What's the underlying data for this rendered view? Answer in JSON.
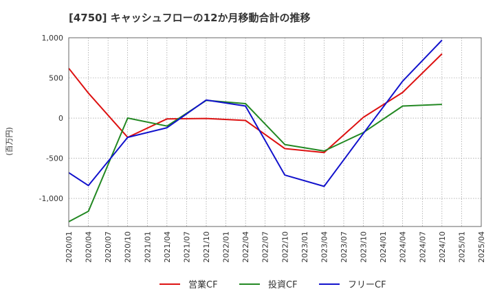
{
  "chart_data": {
    "type": "line",
    "title": "[4750]  キャッシュフローの12か月移動合計の推移",
    "ylabel": "(百万円)",
    "xlabel": "",
    "ylim": [
      -1350,
      1000
    ],
    "yticks": [
      1000,
      500,
      0,
      -500,
      -1000
    ],
    "ytick_labels": [
      "1,000",
      "500",
      "0",
      "-500",
      "-1,000"
    ],
    "x_tick_labels": [
      "2020/01",
      "2020/04",
      "2020/07",
      "2020/10",
      "2021/01",
      "2021/04",
      "2021/07",
      "2021/10",
      "2022/01",
      "2022/04",
      "2022/07",
      "2022/10",
      "2023/01",
      "2023/04",
      "2023/07",
      "2023/10",
      "2024/01",
      "2024/04",
      "2024/07",
      "2024/10",
      "2025/01",
      "2025/04"
    ],
    "grid": true,
    "legend_position": "bottom",
    "series": [
      {
        "name": "営業CF",
        "color": "#dd1111",
        "x": [
          "2020/01",
          "2020/04",
          "2020/10",
          "2021/04",
          "2021/10",
          "2022/04",
          "2022/10",
          "2023/04",
          "2023/10",
          "2024/04",
          "2024/10"
        ],
        "values": [
          620,
          310,
          -240,
          -10,
          -5,
          -30,
          -380,
          -430,
          10,
          320,
          800
        ]
      },
      {
        "name": "投資CF",
        "color": "#228822",
        "x": [
          "2020/01",
          "2020/04",
          "2020/10",
          "2021/04",
          "2021/10",
          "2022/04",
          "2022/10",
          "2023/04",
          "2023/10",
          "2024/04",
          "2024/10"
        ],
        "values": [
          -1290,
          -1160,
          0,
          -100,
          220,
          180,
          -330,
          -410,
          -180,
          150,
          170
        ]
      },
      {
        "name": "フリーCF",
        "color": "#1111cc",
        "x": [
          "2020/01",
          "2020/04",
          "2020/10",
          "2021/04",
          "2021/10",
          "2022/04",
          "2022/10",
          "2023/04",
          "2023/10",
          "2024/04",
          "2024/10"
        ],
        "values": [
          -680,
          -840,
          -240,
          -120,
          225,
          150,
          -710,
          -850,
          -190,
          460,
          970
        ]
      }
    ]
  }
}
